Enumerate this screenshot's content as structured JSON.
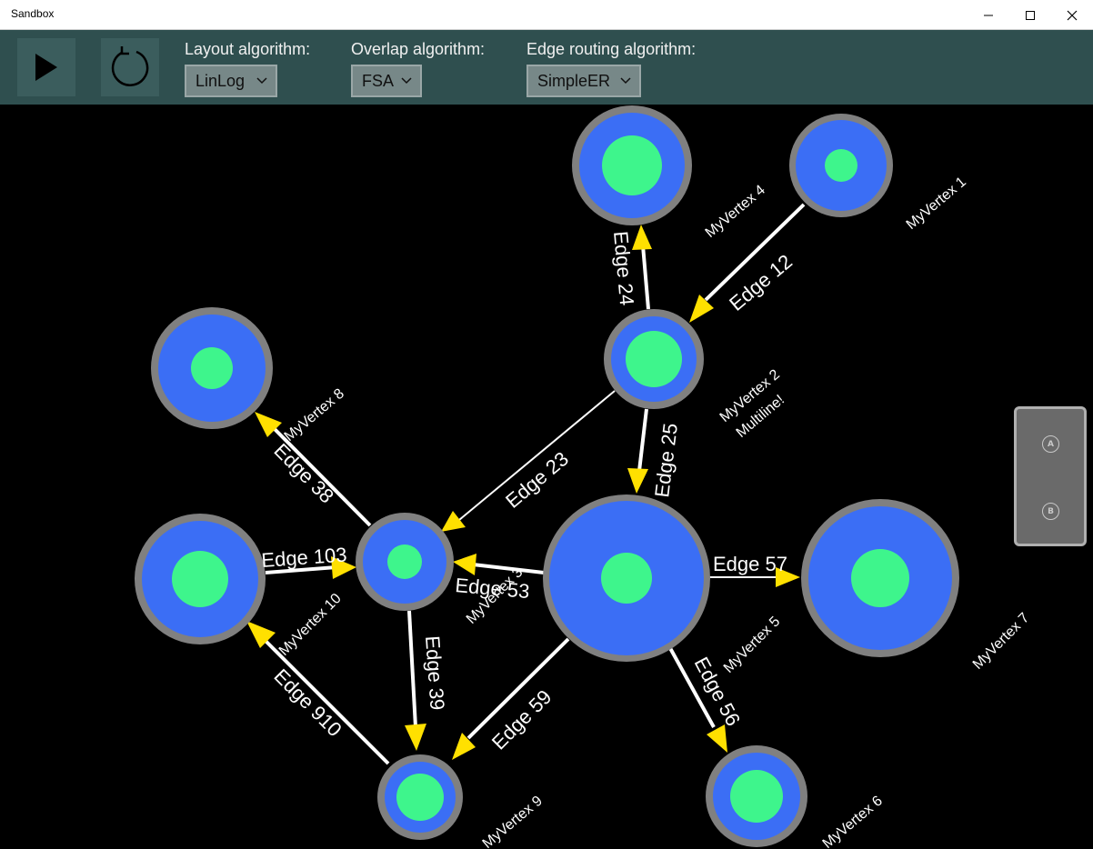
{
  "window": {
    "title": "Sandbox"
  },
  "toolbar": {
    "play_icon": "play-icon",
    "refresh_icon": "refresh-icon",
    "layout_label": "Layout algorithm:",
    "layout_value": "LinLog",
    "overlap_label": "Overlap algorithm:",
    "overlap_value": "FSA",
    "edge_routing_label": "Edge routing algorithm:",
    "edge_routing_value": "SimpleER"
  },
  "graph": {
    "vertex_ring_color": "#808080",
    "vertex_fill_color": "#3b6ef5",
    "vertex_core_color": "#3ef58c",
    "edge_color": "#ffffff",
    "arrow_color": "#ffe000",
    "vertices": [
      {
        "id": "v1",
        "label": "MyVertex 1"
      },
      {
        "id": "v2",
        "label": "MyVertex 2",
        "label2": "Multiline!"
      },
      {
        "id": "v3",
        "label": "MyVertex 3"
      },
      {
        "id": "v4",
        "label": "MyVertex 4"
      },
      {
        "id": "v5",
        "label": "MyVertex 5"
      },
      {
        "id": "v6",
        "label": "MyVertex 6"
      },
      {
        "id": "v7",
        "label": "MyVertex 7"
      },
      {
        "id": "v8",
        "label": "MyVertex 8"
      },
      {
        "id": "v9",
        "label": "MyVertex 9"
      },
      {
        "id": "v10",
        "label": "MyVertex 10"
      }
    ],
    "edges": [
      {
        "id": "e12",
        "label": "Edge 12"
      },
      {
        "id": "e24",
        "label": "Edge 24"
      },
      {
        "id": "e25",
        "label": "Edge 25"
      },
      {
        "id": "e23",
        "label": "Edge 23"
      },
      {
        "id": "e38",
        "label": "Edge 38"
      },
      {
        "id": "e103",
        "label": "Edge 103"
      },
      {
        "id": "e53",
        "label": "Edge 53"
      },
      {
        "id": "e57",
        "label": "Edge 57"
      },
      {
        "id": "e39",
        "label": "Edge 39"
      },
      {
        "id": "e59",
        "label": "Edge 59"
      },
      {
        "id": "e56",
        "label": "Edge 56"
      },
      {
        "id": "e910",
        "label": "Edge 910"
      }
    ]
  },
  "gamepad": {
    "button_a": "A",
    "button_b": "B"
  }
}
